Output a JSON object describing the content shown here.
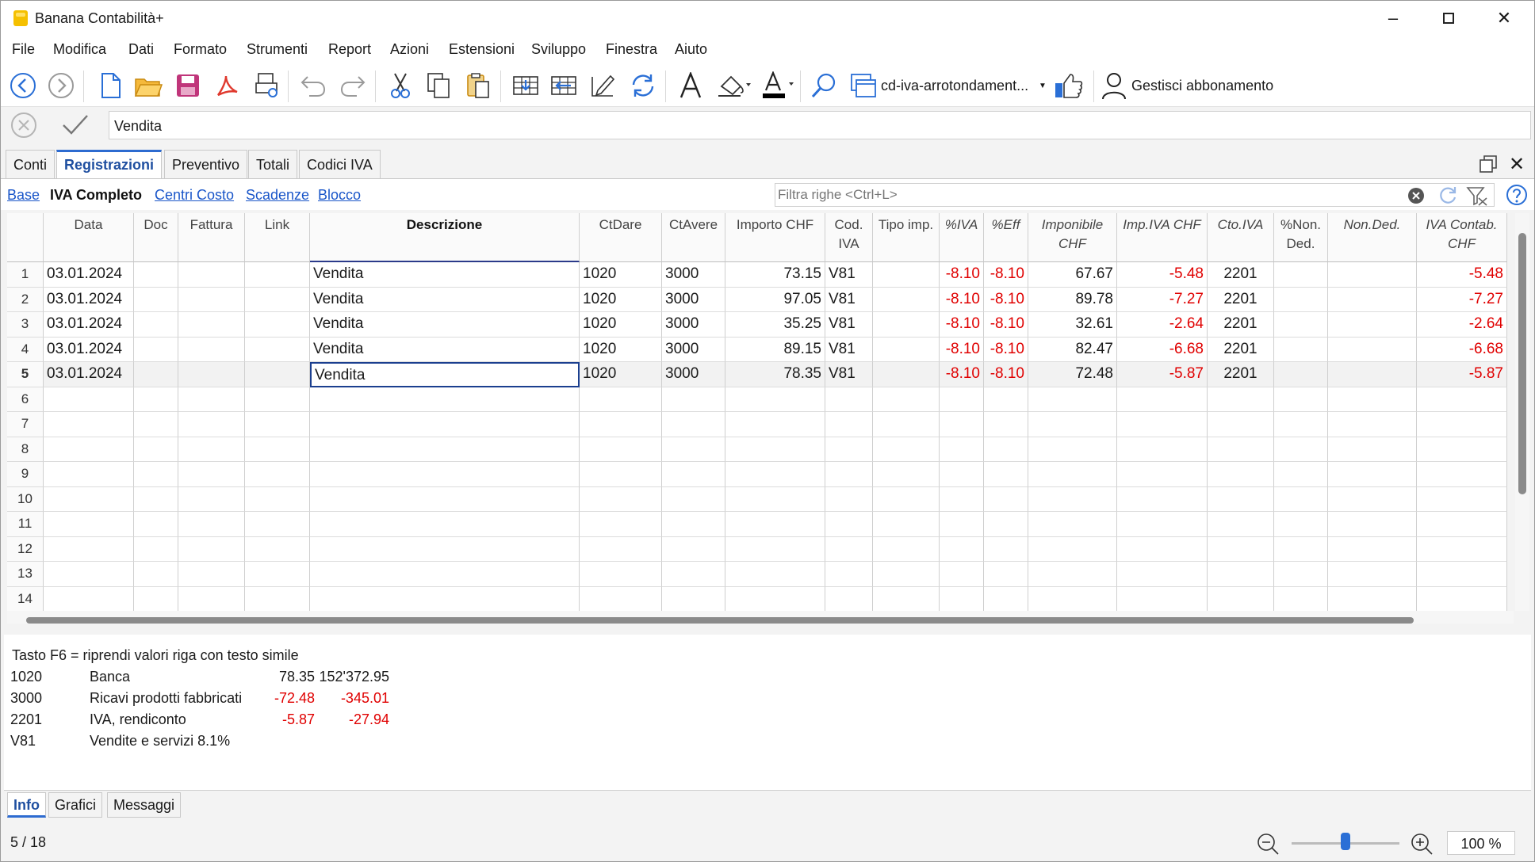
{
  "window": {
    "title": "Banana Contabilità+"
  },
  "menu": [
    "File",
    "Modifica",
    "Dati",
    "Formato",
    "Strumenti",
    "Report",
    "Azioni",
    "Estensioni",
    "Sviluppo",
    "Finestra",
    "Aiuto"
  ],
  "toolbar": {
    "file_name": "cd-iva-arrotondament...",
    "subscription": "Gestisci abbonamento"
  },
  "editbar": {
    "value": "Vendita"
  },
  "tabs": [
    "Conti",
    "Registrazioni",
    "Preventivo",
    "Totali",
    "Codici IVA"
  ],
  "active_tab": "Registrazioni",
  "views": {
    "base": "Base",
    "current": "IVA Completo",
    "cost": "Centri Costo",
    "deadlines": "Scadenze",
    "lock": "Blocco"
  },
  "filter": {
    "placeholder": "Filtra righe <Ctrl+L>"
  },
  "columns": {
    "data": "Data",
    "doc": "Doc",
    "fattura": "Fattura",
    "link": "Link",
    "descrizione": "Descrizione",
    "ctdare": "CtDare",
    "ctavere": "CtAvere",
    "importo": "Importo CHF",
    "codiva1": "Cod.",
    "codiva2": "IVA",
    "tipo": "Tipo imp.",
    "piva": "%IVA",
    "peff": "%Eff",
    "imp1": "Imponibile",
    "imp2": "CHF",
    "impiva": "Imp.IVA CHF",
    "ctoiva": "Cto.IVA",
    "nonded1": "%Non.",
    "nonded2": "Ded.",
    "nondedv": "Non.Ded.",
    "contab1": "IVA Contab.",
    "contab2": "CHF"
  },
  "rows": [
    {
      "n": "1",
      "data": "03.01.2024",
      "descrizione": "Vendita",
      "ctdare": "1020",
      "ctavere": "3000",
      "importo": "73.15",
      "codiva": "V81",
      "piva": "-8.10",
      "peff": "-8.10",
      "imponibile": "67.67",
      "impiva": "-5.48",
      "ctoiva": "2201",
      "contab": "-5.48"
    },
    {
      "n": "2",
      "data": "03.01.2024",
      "descrizione": "Vendita",
      "ctdare": "1020",
      "ctavere": "3000",
      "importo": "97.05",
      "codiva": "V81",
      "piva": "-8.10",
      "peff": "-8.10",
      "imponibile": "89.78",
      "impiva": "-7.27",
      "ctoiva": "2201",
      "contab": "-7.27"
    },
    {
      "n": "3",
      "data": "03.01.2024",
      "descrizione": "Vendita",
      "ctdare": "1020",
      "ctavere": "3000",
      "importo": "35.25",
      "codiva": "V81",
      "piva": "-8.10",
      "peff": "-8.10",
      "imponibile": "32.61",
      "impiva": "-2.64",
      "ctoiva": "2201",
      "contab": "-2.64"
    },
    {
      "n": "4",
      "data": "03.01.2024",
      "descrizione": "Vendita",
      "ctdare": "1020",
      "ctavere": "3000",
      "importo": "89.15",
      "codiva": "V81",
      "piva": "-8.10",
      "peff": "-8.10",
      "imponibile": "82.47",
      "impiva": "-6.68",
      "ctoiva": "2201",
      "contab": "-6.68"
    },
    {
      "n": "5",
      "data": "03.01.2024",
      "descrizione": "Vendita",
      "ctdare": "1020",
      "ctavere": "3000",
      "importo": "78.35",
      "codiva": "V81",
      "piva": "-8.10",
      "peff": "-8.10",
      "imponibile": "72.48",
      "impiva": "-5.87",
      "ctoiva": "2201",
      "contab": "-5.87"
    },
    {
      "n": "6"
    },
    {
      "n": "7"
    },
    {
      "n": "8"
    },
    {
      "n": "9"
    },
    {
      "n": "10"
    },
    {
      "n": "11"
    },
    {
      "n": "12"
    },
    {
      "n": "13"
    },
    {
      "n": "14"
    }
  ],
  "selected_row": 5,
  "info": {
    "hint": "Tasto F6 = riprendi valori riga con testo simile",
    "lines": [
      {
        "code": "1020",
        "desc": "Banca",
        "amount": "78.35",
        "total": "152'372.95"
      },
      {
        "code": "3000",
        "desc": "Ricavi prodotti fabbricati",
        "amount": "-72.48",
        "total": "-345.01"
      },
      {
        "code": "2201",
        "desc": "IVA, rendiconto",
        "amount": "-5.87",
        "total": "-27.94"
      },
      {
        "code": "V81",
        "desc": "Vendite e servizi 8.1%",
        "amount": "",
        "total": ""
      }
    ]
  },
  "bottom_tabs": [
    "Info",
    "Grafici",
    "Messaggi"
  ],
  "status": {
    "position": "5 / 18",
    "zoom": "100 %"
  },
  "colors": {
    "accent": "#2d6bd0",
    "negative": "#e00000",
    "link": "#1a56c9"
  }
}
